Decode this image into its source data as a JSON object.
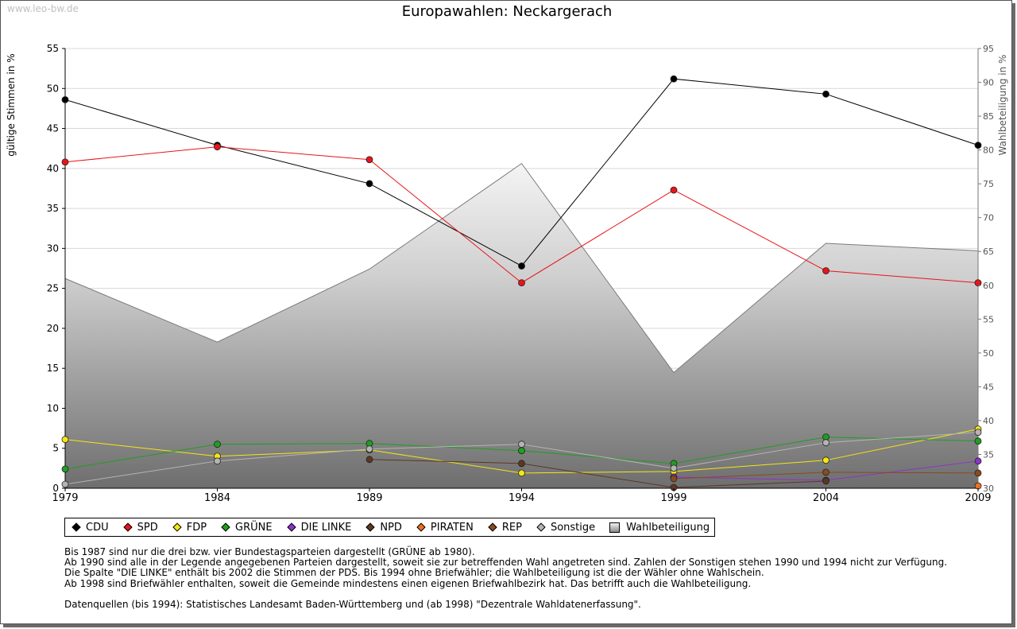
{
  "watermark": "www.leo-bw.de",
  "chart_data": {
    "type": "line",
    "title": "Europawahlen: Neckargerach",
    "ylabel": "gültige Stimmen in %",
    "y2label": "Wahlbeteiligung in %",
    "ylim": [
      0,
      55
    ],
    "y2lim": [
      30,
      95
    ],
    "yticks": [
      "0",
      "5",
      "10",
      "15",
      "20",
      "25",
      "30",
      "35",
      "40",
      "45",
      "50",
      "55"
    ],
    "y2ticks": [
      "30",
      "35",
      "40",
      "45",
      "50",
      "55",
      "60",
      "65",
      "70",
      "75",
      "80",
      "85",
      "90",
      "95"
    ],
    "categories": [
      "1979",
      "1984",
      "1989",
      "1994",
      "1999",
      "2004",
      "2009"
    ],
    "area": {
      "name": "Wahlbeteiligung",
      "values": [
        61.0,
        51.6,
        62.4,
        78.0,
        47.1,
        66.2,
        65.1
      ]
    },
    "series": [
      {
        "name": "CDU",
        "color": "#000000",
        "values": [
          48.6,
          42.9,
          38.1,
          27.8,
          51.2,
          49.3,
          42.9
        ]
      },
      {
        "name": "SPD",
        "color": "#e8141a",
        "values": [
          40.8,
          42.7,
          41.1,
          25.7,
          37.3,
          27.2,
          25.7
        ]
      },
      {
        "name": "FDP",
        "color": "#f5e614",
        "values": [
          6.1,
          4.0,
          4.8,
          1.9,
          2.1,
          3.5,
          7.4
        ]
      },
      {
        "name": "GRÜNE",
        "color": "#1f9e1f",
        "values": [
          2.4,
          5.5,
          5.6,
          4.7,
          3.1,
          6.4,
          5.9
        ]
      },
      {
        "name": "DIE LINKE",
        "color": "#8c33cc",
        "values": [
          null,
          null,
          null,
          null,
          1.4,
          1.0,
          3.4
        ]
      },
      {
        "name": "NPD",
        "color": "#5e3722",
        "values": [
          null,
          null,
          3.6,
          3.1,
          0.1,
          0.9,
          null
        ]
      },
      {
        "name": "PIRATEN",
        "color": "#ee7020",
        "values": [
          null,
          null,
          null,
          null,
          null,
          null,
          0.3
        ]
      },
      {
        "name": "REP",
        "color": "#8a4a22",
        "values": [
          null,
          null,
          null,
          null,
          1.2,
          2.0,
          1.9
        ]
      },
      {
        "name": "Sonstige",
        "color": "#b4b4b4",
        "values": [
          0.5,
          3.4,
          4.9,
          5.5,
          2.5,
          5.7,
          7.0
        ]
      }
    ]
  },
  "legend": [
    {
      "label": "CDU",
      "color": "#000000",
      "kind": "marker"
    },
    {
      "label": "SPD",
      "color": "#e8141a",
      "kind": "marker"
    },
    {
      "label": "FDP",
      "color": "#f5e614",
      "kind": "marker"
    },
    {
      "label": "GRÜNE",
      "color": "#1f9e1f",
      "kind": "marker"
    },
    {
      "label": "DIE LINKE",
      "color": "#8c33cc",
      "kind": "marker"
    },
    {
      "label": "NPD",
      "color": "#5e3722",
      "kind": "marker"
    },
    {
      "label": "PIRATEN",
      "color": "#ee7020",
      "kind": "marker"
    },
    {
      "label": "REP",
      "color": "#8a4a22",
      "kind": "marker"
    },
    {
      "label": "Sonstige",
      "color": "#b4b4b4",
      "kind": "marker"
    },
    {
      "label": "Wahlbeteiligung",
      "color": "#9a9a9a",
      "kind": "box"
    }
  ],
  "notes": {
    "line1": "Bis 1987 sind nur die drei bzw. vier Bundestagsparteien dargestellt (GRÜNE ab 1980).",
    "line2": "Ab 1990 sind alle in der Legende angegebenen Parteien dargestellt, soweit sie zur betreffenden Wahl angetreten sind. Zahlen der Sonstigen stehen 1990 und 1994 nicht zur Verfügung.",
    "line3": "Die Spalte \"DIE LINKE\" enthält bis 2002 die Stimmen der PDS. Bis 1994 ohne Briefwähler; die Wahlbeteiligung ist die der Wähler ohne Wahlschein.",
    "line4": "Ab 1998 sind Briefwähler enthalten, soweit die Gemeinde mindestens einen eigenen Briefwahlbezirk hat. Das betrifft auch die Wahlbeteiligung.",
    "source": "Datenquellen (bis 1994): Statistisches Landesamt Baden-Württemberg und (ab 1998) \"Dezentrale Wahldatenerfassung\"."
  }
}
